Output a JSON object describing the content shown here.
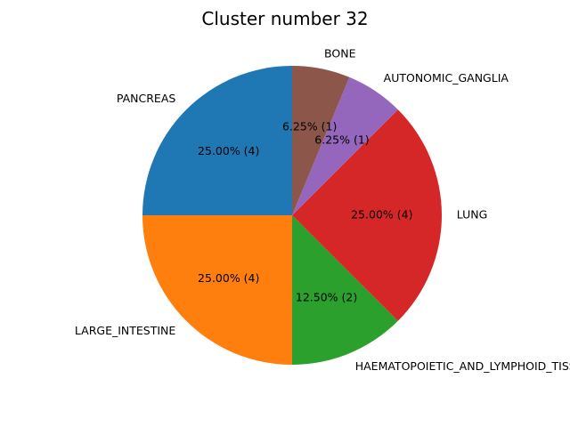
{
  "chart_data": {
    "type": "pie",
    "title": "Cluster number 32",
    "start_angle_deg": 90,
    "direction": "counterclockwise",
    "slices": [
      {
        "label": "PANCREAS",
        "value": 4,
        "pct_text": "25.00%  (4)",
        "color": "#1f77b4"
      },
      {
        "label": "LARGE_INTESTINE",
        "value": 4,
        "pct_text": "25.00%  (4)",
        "color": "#ff7f0e"
      },
      {
        "label": "HAEMATOPOIETIC_AND_LYMPHOID_TISSUE",
        "value": 2,
        "pct_text": "12.50%  (2)",
        "color": "#2ca02c"
      },
      {
        "label": "LUNG",
        "value": 4,
        "pct_text": "25.00%  (4)",
        "color": "#d62728"
      },
      {
        "label": "AUTONOMIC_GANGLIA",
        "value": 1,
        "pct_text": "6.25%  (1)",
        "color": "#9467bd"
      },
      {
        "label": "BONE",
        "value": 1,
        "pct_text": "6.25%  (1)",
        "color": "#8c564b"
      }
    ]
  }
}
